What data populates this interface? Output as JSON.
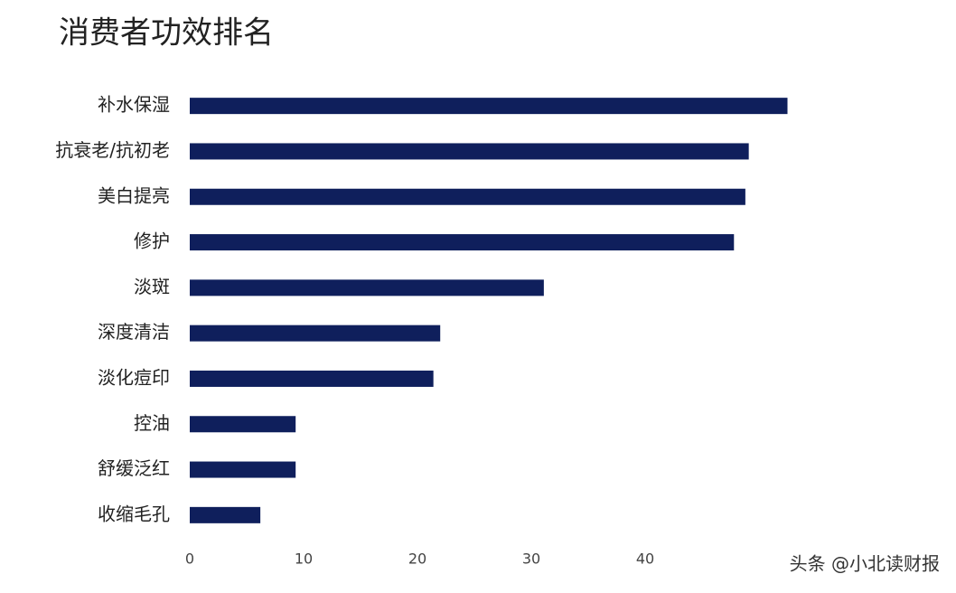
{
  "chart_data": {
    "type": "bar",
    "orientation": "horizontal",
    "title": "消费者功效排名",
    "categories": [
      "补水保湿",
      "抗衰老/抗初老",
      "美白提亮",
      "修护",
      "淡斑",
      "深度清洁",
      "淡化痘印",
      "控油",
      "舒缓泛红",
      "收缩毛孔"
    ],
    "values": [
      52.5,
      49.1,
      48.8,
      47.8,
      31.1,
      22.0,
      21.4,
      9.3,
      9.3,
      6.2
    ],
    "color": "#0f1f5c",
    "xlim": [
      0,
      65
    ],
    "xticks": [
      0,
      10,
      20,
      30,
      40
    ],
    "grid": false,
    "watermark": "头条 @小北读财报"
  }
}
